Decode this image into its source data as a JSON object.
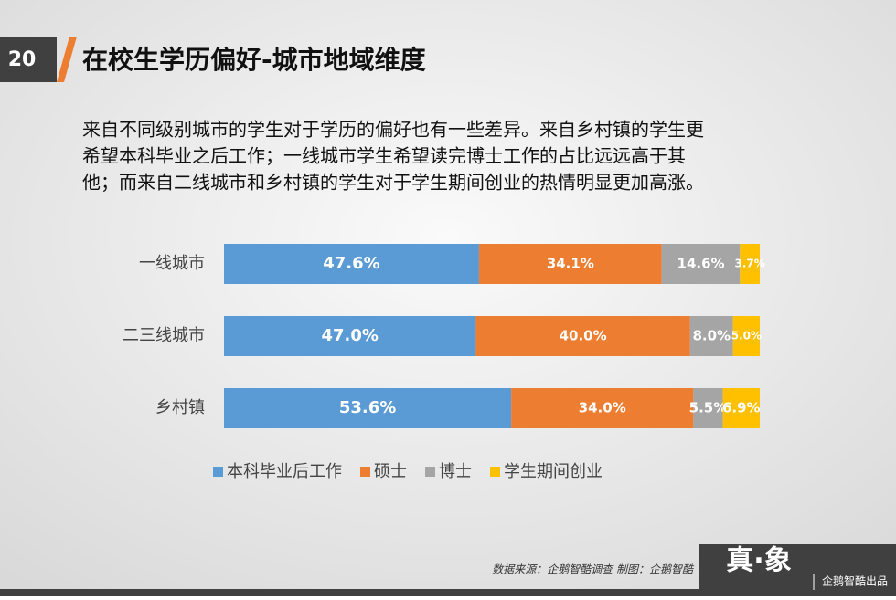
{
  "page_number": "20",
  "title": "在校生学历偏好-城市地域维度",
  "description": [
    "来自不同级别城市的学生对于学历的偏好也有一些差异。来自乡村镇的学生更",
    "希望本科毕业之后工作；一线城市学生希望读完博士工作的占比远远高于其",
    "他；而来自二线城市和乡村镇的学生对于学生期间创业的热情明显更加高涨。"
  ],
  "chart_data": {
    "type": "stacked-bar-horizontal",
    "categories": [
      "一线城市",
      "二三线城市",
      "乡村镇"
    ],
    "xlim": [
      0,
      100
    ],
    "series": [
      {
        "name": "本科毕业后工作",
        "color": "#5b9bd5",
        "values": [
          47.6,
          47.0,
          53.6
        ],
        "value_labels": [
          "47.6%",
          "47.0%",
          "53.6%"
        ]
      },
      {
        "name": "硕士",
        "color": "#ed7d31",
        "values": [
          34.1,
          40.0,
          34.0
        ],
        "value_labels": [
          "34.1%",
          "40.0%",
          "34.0%"
        ]
      },
      {
        "name": "博士",
        "color": "#a5a5a5",
        "values": [
          14.6,
          8.0,
          5.5
        ],
        "value_labels": [
          "14.6%",
          "8.0%",
          "5.5%"
        ]
      },
      {
        "name": "学生期间创业",
        "color": "#ffc000",
        "values": [
          3.7,
          5.0,
          6.9
        ],
        "value_labels": [
          "3.7%",
          "5.0%",
          "6.9%"
        ]
      }
    ]
  },
  "source": "数据来源：企鹅智酷调查  制图：企鹅智酷",
  "brand": {
    "logo": "真·象",
    "text": "企鹅智酷出品"
  }
}
